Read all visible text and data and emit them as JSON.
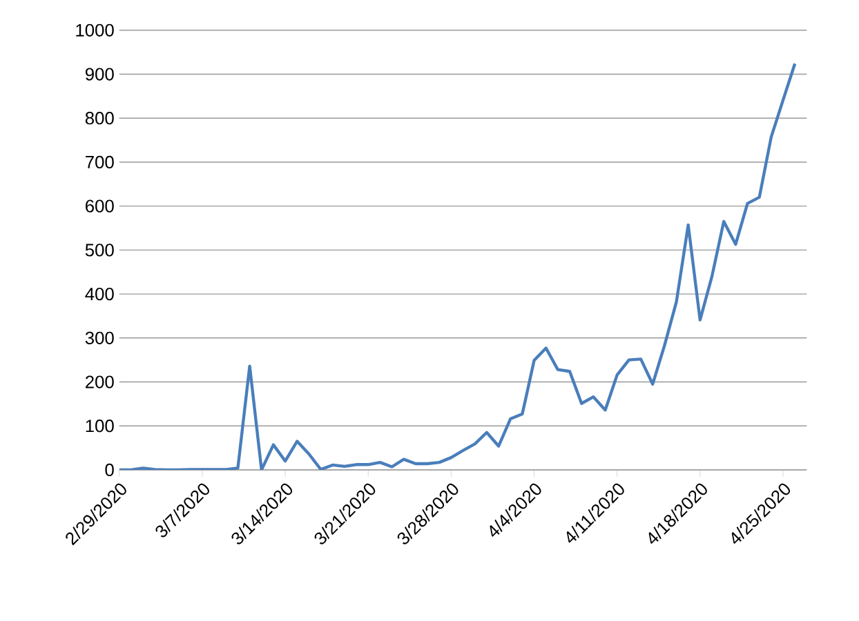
{
  "chart_data": {
    "type": "line",
    "x": [
      "2020-02-29",
      "2020-03-01",
      "2020-03-02",
      "2020-03-03",
      "2020-03-04",
      "2020-03-05",
      "2020-03-06",
      "2020-03-07",
      "2020-03-08",
      "2020-03-09",
      "2020-03-10",
      "2020-03-11",
      "2020-03-12",
      "2020-03-13",
      "2020-03-14",
      "2020-03-15",
      "2020-03-16",
      "2020-03-17",
      "2020-03-18",
      "2020-03-19",
      "2020-03-20",
      "2020-03-21",
      "2020-03-22",
      "2020-03-23",
      "2020-03-24",
      "2020-03-25",
      "2020-03-26",
      "2020-03-27",
      "2020-03-28",
      "2020-03-29",
      "2020-03-30",
      "2020-03-31",
      "2020-04-01",
      "2020-04-02",
      "2020-04-03",
      "2020-04-04",
      "2020-04-05",
      "2020-04-06",
      "2020-04-07",
      "2020-04-08",
      "2020-04-09",
      "2020-04-10",
      "2020-04-11",
      "2020-04-12",
      "2020-04-13",
      "2020-04-14",
      "2020-04-15",
      "2020-04-16",
      "2020-04-17",
      "2020-04-18",
      "2020-04-19",
      "2020-04-20",
      "2020-04-21",
      "2020-04-22",
      "2020-04-23",
      "2020-04-24",
      "2020-04-25",
      "2020-04-26"
    ],
    "series": [
      {
        "color": "#4a7ebb",
        "values": [
          0,
          0,
          4,
          1,
          0,
          0,
          1,
          1,
          1,
          1,
          4,
          236,
          0,
          57,
          20,
          65,
          36,
          1,
          11,
          8,
          12,
          12,
          17,
          7,
          24,
          14,
          14,
          17,
          28,
          44,
          59,
          85,
          54,
          116,
          127,
          249,
          277,
          228,
          224,
          151,
          166,
          136,
          216,
          250,
          252,
          195,
          283,
          382,
          557,
          341,
          440,
          565,
          513,
          606,
          620,
          757,
          841,
          924
        ]
      }
    ],
    "xlim": [
      "2020-02-29",
      "2020-04-27"
    ],
    "xticks": [
      {
        "value": "2020-02-29",
        "label": "2/29/2020"
      },
      {
        "value": "2020-03-07",
        "label": "3/7/2020"
      },
      {
        "value": "2020-03-14",
        "label": "3/14/2020"
      },
      {
        "value": "2020-03-21",
        "label": "3/21/2020"
      },
      {
        "value": "2020-03-28",
        "label": "3/28/2020"
      },
      {
        "value": "2020-04-04",
        "label": "4/4/2020"
      },
      {
        "value": "2020-04-11",
        "label": "4/11/2020"
      },
      {
        "value": "2020-04-18",
        "label": "4/18/2020"
      },
      {
        "value": "2020-04-25",
        "label": "4/25/2020"
      }
    ],
    "ylim": [
      0,
      1000
    ],
    "yticks": [
      0,
      100,
      200,
      300,
      400,
      500,
      600,
      700,
      800,
      900,
      1000
    ],
    "grid": "y",
    "marker": "none",
    "line_style": "solid"
  }
}
